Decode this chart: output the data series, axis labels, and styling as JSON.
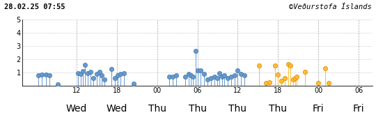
{
  "title_left": "28.02.25 07:55",
  "title_right": "©Veðurstofa Íslands",
  "xlim": [
    -2,
    50
  ],
  "ylim": [
    0,
    5
  ],
  "yticks": [
    1,
    2,
    3,
    4,
    5
  ],
  "xtick_positions": [
    6,
    12,
    18,
    24,
    30,
    36,
    42,
    48
  ],
  "xtick_labels": [
    "12",
    "18",
    "00",
    "06",
    "12",
    "18",
    "00",
    "06"
  ],
  "day_tick_positions": [
    6,
    12,
    18,
    24,
    30,
    36,
    42,
    48
  ],
  "day_tick_labels": [
    "Wed",
    "Wed",
    "Thu",
    "Thu",
    "Thu",
    "Thu",
    "Fri",
    "Fri"
  ],
  "grid_h": [
    1,
    2,
    3,
    4,
    5
  ],
  "grid_v": [
    6,
    12,
    18,
    24,
    30,
    36,
    42,
    48
  ],
  "blue_color": "#6699cc",
  "dark_blue_color": "#4477aa",
  "orange_color": "#ffbb33",
  "dark_orange_color": "#dd8800",
  "background_color": "#ffffff",
  "earthquakes_blue": [
    {
      "t": 0.3,
      "m": 0.75
    },
    {
      "t": 0.9,
      "m": 0.8
    },
    {
      "t": 1.5,
      "m": 0.8
    },
    {
      "t": 2.0,
      "m": 0.75
    },
    {
      "t": 3.2,
      "m": 0.1
    },
    {
      "t": 6.2,
      "m": 0.9
    },
    {
      "t": 6.7,
      "m": 0.85
    },
    {
      "t": 7.0,
      "m": 1.1
    },
    {
      "t": 7.3,
      "m": 1.55
    },
    {
      "t": 7.7,
      "m": 0.95
    },
    {
      "t": 8.1,
      "m": 1.05
    },
    {
      "t": 8.5,
      "m": 0.55
    },
    {
      "t": 9.0,
      "m": 0.85
    },
    {
      "t": 9.5,
      "m": 1.05
    },
    {
      "t": 9.8,
      "m": 0.75
    },
    {
      "t": 10.2,
      "m": 0.45
    },
    {
      "t": 11.2,
      "m": 1.25
    },
    {
      "t": 11.7,
      "m": 0.55
    },
    {
      "t": 12.1,
      "m": 0.75
    },
    {
      "t": 12.6,
      "m": 0.85
    },
    {
      "t": 13.1,
      "m": 0.95
    },
    {
      "t": 14.5,
      "m": 0.15
    },
    {
      "t": 19.8,
      "m": 0.65
    },
    {
      "t": 20.3,
      "m": 0.65
    },
    {
      "t": 20.8,
      "m": 0.75
    },
    {
      "t": 22.2,
      "m": 0.65
    },
    {
      "t": 22.7,
      "m": 0.85
    },
    {
      "t": 23.0,
      "m": 0.75
    },
    {
      "t": 23.3,
      "m": 0.65
    },
    {
      "t": 23.7,
      "m": 2.6
    },
    {
      "t": 24.0,
      "m": 1.15
    },
    {
      "t": 24.5,
      "m": 1.15
    },
    {
      "t": 25.0,
      "m": 0.85
    },
    {
      "t": 25.5,
      "m": 0.45
    },
    {
      "t": 26.0,
      "m": 0.55
    },
    {
      "t": 26.5,
      "m": 0.65
    },
    {
      "t": 27.0,
      "m": 0.55
    },
    {
      "t": 27.3,
      "m": 0.95
    },
    {
      "t": 27.7,
      "m": 0.65
    },
    {
      "t": 28.0,
      "m": 0.75
    },
    {
      "t": 28.5,
      "m": 0.55
    },
    {
      "t": 29.0,
      "m": 0.65
    },
    {
      "t": 29.5,
      "m": 0.75
    },
    {
      "t": 30.0,
      "m": 1.15
    },
    {
      "t": 30.5,
      "m": 0.85
    },
    {
      "t": 31.0,
      "m": 0.75
    }
  ],
  "earthquakes_orange": [
    {
      "t": 33.2,
      "m": 1.5
    },
    {
      "t": 34.2,
      "m": 0.2
    },
    {
      "t": 34.7,
      "m": 0.25
    },
    {
      "t": 35.5,
      "m": 1.5
    },
    {
      "t": 36.0,
      "m": 0.8
    },
    {
      "t": 36.5,
      "m": 0.35
    },
    {
      "t": 37.0,
      "m": 0.55
    },
    {
      "t": 37.5,
      "m": 1.6
    },
    {
      "t": 37.8,
      "m": 1.5
    },
    {
      "t": 38.2,
      "m": 0.45
    },
    {
      "t": 38.5,
      "m": 0.55
    },
    {
      "t": 38.8,
      "m": 0.65
    },
    {
      "t": 40.0,
      "m": 1.05
    },
    {
      "t": 42.0,
      "m": 0.2
    },
    {
      "t": 43.0,
      "m": 1.3
    },
    {
      "t": 43.5,
      "m": 0.2
    }
  ]
}
